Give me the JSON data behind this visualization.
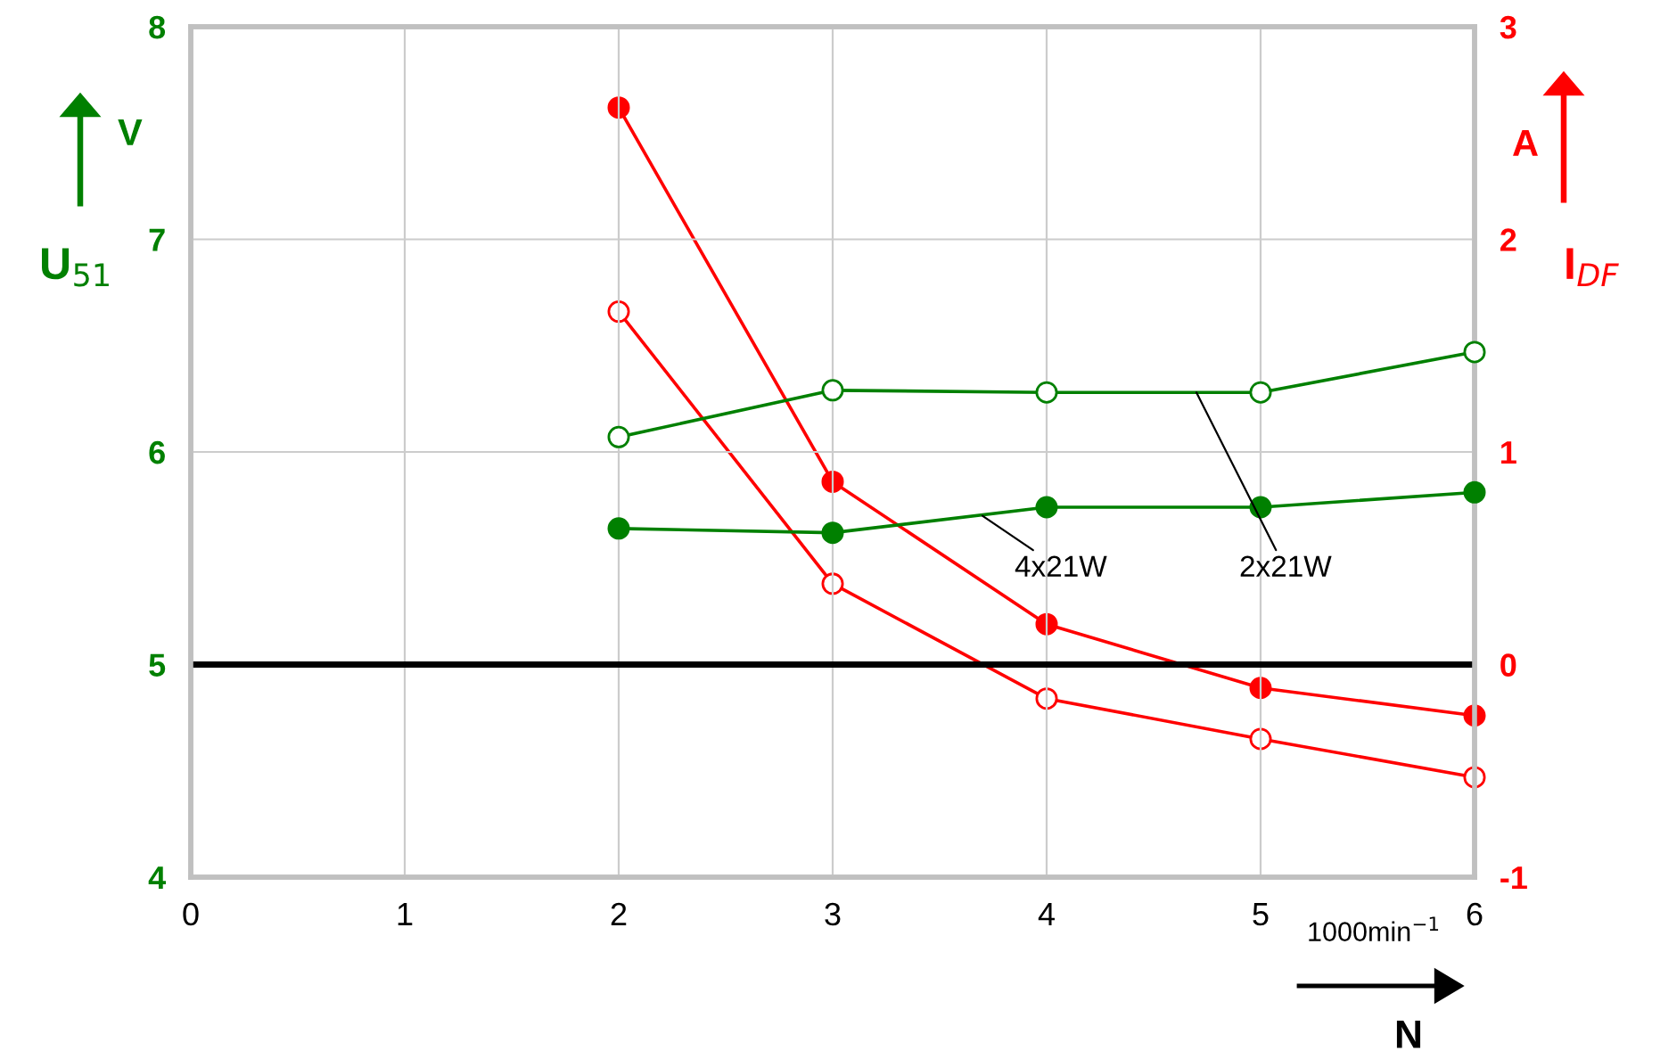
{
  "chart_data": {
    "type": "line",
    "xlabel": "N",
    "ylabel": "U$_{51}$",
    "y2label": "I$_{DF}$",
    "xlim": [
      0,
      6
    ],
    "xticks": [
      0,
      1,
      2,
      3,
      4,
      5,
      6
    ],
    "ylim": [
      4,
      8
    ],
    "yticks": [
      4,
      5,
      6,
      7,
      8
    ],
    "y2lim": [
      -1,
      3
    ],
    "y2ticks": [
      -1,
      0,
      1,
      2,
      3
    ],
    "grid": true,
    "marker": "circle",
    "line_style": "solid",
    "x": [
      2,
      3,
      4,
      5,
      6
    ],
    "series": [
      {
        "color": "#008000",
        "values": [
          6.07,
          6.29,
          6.28,
          6.28,
          6.47
        ]
      },
      {
        "color": "#008000",
        "values": [
          5.64,
          5.62,
          5.74,
          5.74,
          5.81
        ]
      },
      {
        "color": "#ff0000",
        "axis": "y2",
        "values": [
          2.62,
          0.86,
          0.19,
          -0.11,
          -0.24
        ]
      },
      {
        "color": "#ff0000",
        "axis": "y2",
        "values": [
          1.66,
          0.38,
          -0.16,
          -0.35,
          -0.53
        ]
      }
    ],
    "ref_lines": [
      {
        "axis": "y",
        "value": 5,
        "color": "#000000"
      }
    ],
    "annotations": [
      {
        "text": "4x21W",
        "x": 3.7,
        "y": 5.7
      },
      {
        "text": "2x21W",
        "x": 4.7,
        "y": 6.28
      },
      "V",
      "A",
      "1000min$^{−1}$"
    ]
  }
}
